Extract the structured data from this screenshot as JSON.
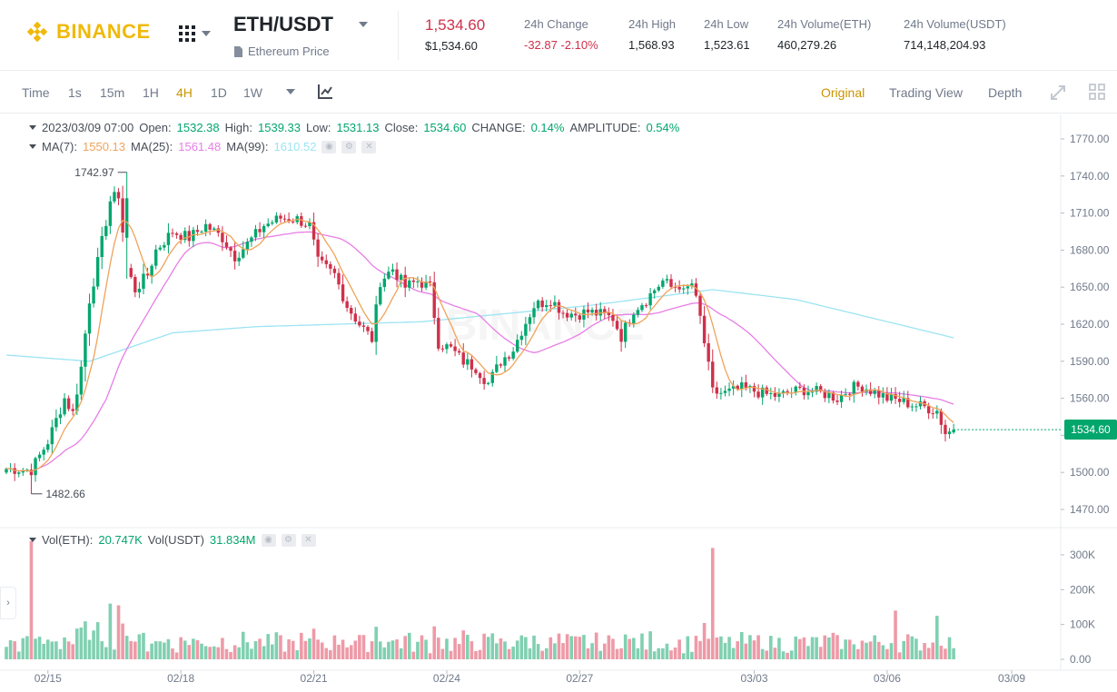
{
  "header": {
    "brand": "BINANCE",
    "pair": "ETH/USDT",
    "subtitle": "Ethereum Price",
    "last_price": "1,534.60",
    "last_price_usd": "$1,534.60",
    "stats": [
      {
        "label": "24h Change",
        "value": "-32.87 -2.10%"
      },
      {
        "label": "24h High",
        "value": "1,568.93"
      },
      {
        "label": "24h Low",
        "value": "1,523.61"
      },
      {
        "label": "24h Volume(ETH)",
        "value": "460,279.26"
      },
      {
        "label": "24h Volume(USDT)",
        "value": "714,148,204.93"
      }
    ]
  },
  "toolbar": {
    "timeframes": [
      "Time",
      "1s",
      "15m",
      "1H",
      "4H",
      "1D",
      "1W"
    ],
    "active_timeframe": "4H",
    "views": [
      "Original",
      "Trading View",
      "Depth"
    ],
    "active_view": "Original"
  },
  "legend": {
    "date": "2023/03/09 07:00",
    "open_label": "Open:",
    "open": "1532.38",
    "high_label": "High:",
    "high": "1539.33",
    "low_label": "Low:",
    "low": "1531.13",
    "close_label": "Close:",
    "close": "1534.60",
    "change_label": "CHANGE:",
    "change": "0.14%",
    "amp_label": "AMPLITUDE:",
    "amp": "0.54%",
    "ma7_label": "MA(7):",
    "ma7": "1550.13",
    "ma25_label": "MA(25):",
    "ma25": "1561.48",
    "ma99_label": "MA(99):",
    "ma99": "1610.52"
  },
  "vol_legend": {
    "eth_label": "Vol(ETH):",
    "eth": "20.747K",
    "usdt_label": "Vol(USDT)",
    "usdt": "31.834M"
  },
  "current_price_tag": "1534.60",
  "colors": {
    "up": "#03a66d",
    "down": "#cf304a",
    "ma7": "#f0a35a",
    "ma25": "#e77ee6",
    "ma99": "#9ce4f2",
    "accent": "#c99400",
    "brand": "#f0b90b"
  },
  "chart_data": {
    "type": "candlestick",
    "price_axis": {
      "ticks": [
        "1770.00",
        "1740.00",
        "1710.00",
        "1680.00",
        "1650.00",
        "1620.00",
        "1590.00",
        "1560.00",
        "1530.00",
        "1500.00",
        "1470.00"
      ],
      "ylim": [
        1470,
        1770
      ]
    },
    "volume_axis": {
      "ticks": [
        "300K",
        "200K",
        "100K",
        "0.00"
      ],
      "ylim": [
        0,
        300000
      ]
    },
    "x_ticks": [
      "02/15",
      "02/18",
      "02/21",
      "02/24",
      "02/27",
      "03/03",
      "03/06",
      "03/09"
    ],
    "annotations": [
      {
        "label": "1742.97",
        "value": 1742.97
      },
      {
        "label": "1482.66",
        "value": 1482.66
      }
    ],
    "anchors": [
      [
        0,
        1503
      ],
      [
        6,
        1502
      ],
      [
        10,
        1525
      ],
      [
        14,
        1560
      ],
      [
        16,
        1548
      ],
      [
        18,
        1585
      ],
      [
        20,
        1640
      ],
      [
        22,
        1670
      ],
      [
        25,
        1720
      ],
      [
        27,
        1725
      ],
      [
        29,
        1665
      ],
      [
        31,
        1648
      ],
      [
        34,
        1660
      ],
      [
        36,
        1680
      ],
      [
        40,
        1695
      ],
      [
        44,
        1690
      ],
      [
        48,
        1700
      ],
      [
        52,
        1690
      ],
      [
        55,
        1675
      ],
      [
        58,
        1685
      ],
      [
        62,
        1700
      ],
      [
        66,
        1706
      ],
      [
        70,
        1705
      ],
      [
        73,
        1700
      ],
      [
        75,
        1670
      ],
      [
        79,
        1660
      ],
      [
        82,
        1635
      ],
      [
        85,
        1620
      ],
      [
        88,
        1608
      ],
      [
        90,
        1655
      ],
      [
        93,
        1665
      ],
      [
        96,
        1650
      ],
      [
        99,
        1655
      ],
      [
        102,
        1650
      ],
      [
        104,
        1605
      ],
      [
        107,
        1600
      ],
      [
        110,
        1590
      ],
      [
        113,
        1585
      ],
      [
        116,
        1572
      ],
      [
        119,
        1590
      ],
      [
        122,
        1600
      ],
      [
        124,
        1615
      ],
      [
        127,
        1635
      ],
      [
        131,
        1640
      ],
      [
        134,
        1630
      ],
      [
        137,
        1628
      ],
      [
        140,
        1630
      ],
      [
        143,
        1628
      ],
      [
        146,
        1625
      ],
      [
        148,
        1610
      ],
      [
        151,
        1632
      ],
      [
        154,
        1640
      ],
      [
        156,
        1648
      ],
      [
        158,
        1655
      ],
      [
        160,
        1650
      ],
      [
        162,
        1652
      ],
      [
        163,
        1645
      ],
      [
        165,
        1653
      ],
      [
        167,
        1625
      ],
      [
        170,
        1565
      ],
      [
        173,
        1564
      ],
      [
        177,
        1568
      ],
      [
        180,
        1566
      ],
      [
        183,
        1563
      ],
      [
        186,
        1562
      ],
      [
        189,
        1565
      ],
      [
        192,
        1567
      ],
      [
        195,
        1565
      ],
      [
        198,
        1563
      ],
      [
        200,
        1560
      ],
      [
        203,
        1568
      ],
      [
        206,
        1570
      ],
      [
        209,
        1565
      ],
      [
        212,
        1560
      ],
      [
        215,
        1558
      ],
      [
        218,
        1555
      ],
      [
        221,
        1553
      ],
      [
        224,
        1550
      ],
      [
        226,
        1532
      ],
      [
        228,
        1534
      ]
    ],
    "ma99_anchors": [
      [
        0,
        1595
      ],
      [
        20,
        1590
      ],
      [
        40,
        1613
      ],
      [
        60,
        1618
      ],
      [
        80,
        1620
      ],
      [
        100,
        1622
      ],
      [
        140,
        1635
      ],
      [
        170,
        1648
      ],
      [
        190,
        1640
      ],
      [
        228,
        1609
      ]
    ],
    "volume_peaks": [
      [
        6,
        340000
      ],
      [
        25,
        160000
      ],
      [
        27,
        155000
      ],
      [
        170,
        320000
      ],
      [
        214,
        140000
      ],
      [
        224,
        125000
      ]
    ]
  }
}
